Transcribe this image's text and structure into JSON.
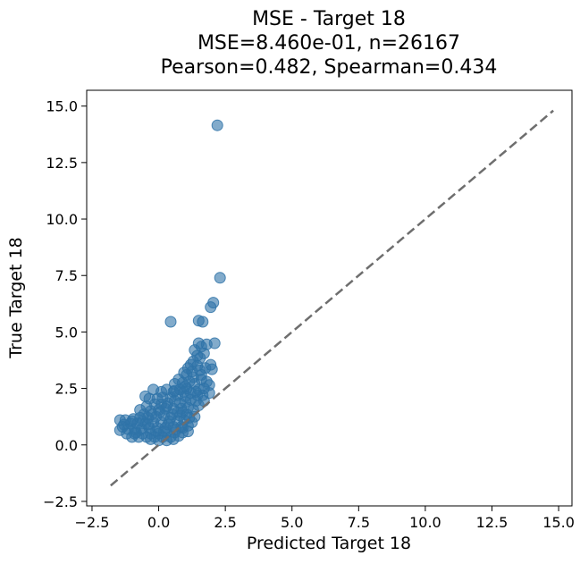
{
  "chart_data": {
    "type": "scatter",
    "title": [
      "MSE - Target 18",
      "MSE=8.460e-01, n=26167",
      "Pearson=0.482, Spearman=0.434"
    ],
    "xlabel": "Predicted Target 18",
    "ylabel": "True Target 18",
    "xlim": [
      -2.7,
      15.5
    ],
    "ylim": [
      -2.7,
      15.7
    ],
    "xticks": [
      -2.5,
      0.0,
      2.5,
      5.0,
      7.5,
      10.0,
      12.5,
      15.0
    ],
    "yticks": [
      -2.5,
      0.0,
      2.5,
      5.0,
      7.5,
      10.0,
      12.5,
      15.0
    ],
    "xtick_labels": [
      "−2.5",
      "0.0",
      "2.5",
      "5.0",
      "7.5",
      "10.0",
      "12.5",
      "15.0"
    ],
    "ytick_labels": [
      "−2.5",
      "0.0",
      "2.5",
      "5.0",
      "7.5",
      "10.0",
      "12.5",
      "15.0"
    ],
    "grid": false,
    "point_color": "#2f73a8",
    "reference_line": {
      "x": [
        -1.8,
        14.8
      ],
      "y": [
        -1.8,
        14.8
      ],
      "style": "dashed",
      "color": "#6e6e6e"
    },
    "points": [
      [
        2.2,
        14.15
      ],
      [
        2.3,
        7.4
      ],
      [
        2.05,
        6.3
      ],
      [
        1.95,
        6.1
      ],
      [
        1.5,
        5.5
      ],
      [
        1.65,
        5.45
      ],
      [
        0.45,
        5.45
      ],
      [
        2.1,
        4.5
      ],
      [
        1.8,
        4.45
      ],
      [
        1.5,
        4.5
      ],
      [
        1.35,
        4.2
      ],
      [
        1.6,
        4.35
      ],
      [
        1.7,
        4.05
      ],
      [
        1.55,
        3.85
      ],
      [
        1.45,
        3.95
      ],
      [
        1.3,
        3.7
      ],
      [
        1.95,
        3.55
      ],
      [
        1.75,
        3.4
      ],
      [
        2.0,
        3.35
      ],
      [
        1.55,
        3.3
      ],
      [
        1.45,
        3.5
      ],
      [
        1.2,
        3.55
      ],
      [
        1.1,
        3.4
      ],
      [
        1.25,
        3.25
      ],
      [
        1.05,
        3.1
      ],
      [
        0.95,
        3.2
      ],
      [
        1.3,
        3.0
      ],
      [
        1.6,
        2.9
      ],
      [
        1.8,
        2.8
      ],
      [
        1.9,
        2.65
      ],
      [
        1.7,
        2.5
      ],
      [
        1.5,
        2.45
      ],
      [
        1.35,
        2.7
      ],
      [
        1.15,
        2.8
      ],
      [
        1.0,
        2.6
      ],
      [
        0.9,
        2.75
      ],
      [
        0.75,
        2.9
      ],
      [
        0.6,
        2.7
      ],
      [
        0.8,
        2.45
      ],
      [
        0.55,
        2.35
      ],
      [
        0.3,
        2.45
      ],
      [
        0.1,
        2.35
      ],
      [
        -0.2,
        2.45
      ],
      [
        -0.5,
        2.15
      ],
      [
        -0.35,
        2.05
      ],
      [
        0.15,
        2.1
      ],
      [
        0.45,
        2.1
      ],
      [
        0.7,
        2.2
      ],
      [
        0.95,
        2.35
      ],
      [
        1.2,
        2.3
      ],
      [
        1.45,
        2.2
      ],
      [
        1.65,
        2.2
      ],
      [
        1.4,
        1.95
      ],
      [
        1.2,
        2.0
      ],
      [
        1.0,
        1.9
      ],
      [
        0.8,
        1.85
      ],
      [
        0.6,
        1.95
      ],
      [
        0.35,
        1.85
      ],
      [
        0.1,
        1.8
      ],
      [
        -0.15,
        1.8
      ],
      [
        -0.45,
        1.7
      ],
      [
        -0.7,
        1.55
      ],
      [
        -0.55,
        1.35
      ],
      [
        -0.3,
        1.5
      ],
      [
        0.0,
        1.55
      ],
      [
        0.25,
        1.6
      ],
      [
        0.55,
        1.6
      ],
      [
        0.85,
        1.6
      ],
      [
        1.1,
        1.65
      ],
      [
        1.3,
        1.55
      ],
      [
        1.05,
        1.35
      ],
      [
        0.8,
        1.3
      ],
      [
        0.5,
        1.35
      ],
      [
        0.2,
        1.3
      ],
      [
        -0.1,
        1.25
      ],
      [
        -0.4,
        1.2
      ],
      [
        -0.7,
        1.2
      ],
      [
        -0.95,
        1.15
      ],
      [
        -1.25,
        1.1
      ],
      [
        -1.45,
        1.1
      ],
      [
        -1.3,
        0.9
      ],
      [
        -1.05,
        0.95
      ],
      [
        -0.8,
        0.95
      ],
      [
        -0.5,
        0.95
      ],
      [
        -0.2,
        1.0
      ],
      [
        0.1,
        1.0
      ],
      [
        0.4,
        1.05
      ],
      [
        0.7,
        1.05
      ],
      [
        0.95,
        1.1
      ],
      [
        1.15,
        1.2
      ],
      [
        1.35,
        1.25
      ],
      [
        1.1,
        0.85
      ],
      [
        0.85,
        0.8
      ],
      [
        0.55,
        0.8
      ],
      [
        0.25,
        0.75
      ],
      [
        -0.05,
        0.75
      ],
      [
        -0.35,
        0.75
      ],
      [
        -0.65,
        0.7
      ],
      [
        -0.9,
        0.7
      ],
      [
        -1.15,
        0.7
      ],
      [
        -1.45,
        0.65
      ],
      [
        -1.2,
        0.5
      ],
      [
        -0.9,
        0.5
      ],
      [
        -0.6,
        0.5
      ],
      [
        -0.3,
        0.5
      ],
      [
        0.0,
        0.5
      ],
      [
        0.3,
        0.55
      ],
      [
        0.6,
        0.55
      ],
      [
        0.9,
        0.55
      ],
      [
        1.1,
        0.6
      ],
      [
        0.75,
        0.4
      ],
      [
        0.45,
        0.35
      ],
      [
        0.15,
        0.35
      ],
      [
        -0.15,
        0.35
      ],
      [
        -0.45,
        0.35
      ],
      [
        -0.75,
        0.35
      ],
      [
        -1.0,
        0.35
      ],
      [
        0.3,
        0.2
      ],
      [
        0.0,
        0.2
      ],
      [
        -0.3,
        0.25
      ],
      [
        0.55,
        0.25
      ],
      [
        0.9,
        0.75
      ],
      [
        1.5,
        1.75
      ],
      [
        1.7,
        1.95
      ],
      [
        1.9,
        2.3
      ],
      [
        0.7,
        1.45
      ],
      [
        0.35,
        0.9
      ],
      [
        -0.6,
        1.05
      ],
      [
        -0.85,
        0.55
      ],
      [
        -0.1,
        0.6
      ],
      [
        0.45,
        1.2
      ],
      [
        1.25,
        1.0
      ],
      [
        0.05,
        1.45
      ],
      [
        -0.25,
        1.35
      ],
      [
        0.6,
        2.4
      ],
      [
        1.05,
        2.5
      ],
      [
        1.4,
        2.35
      ],
      [
        1.6,
        3.1
      ],
      [
        1.0,
        2.15
      ],
      [
        0.3,
        1.7
      ],
      [
        -0.05,
        2.05
      ],
      [
        0.2,
        0.6
      ],
      [
        0.65,
        0.7
      ],
      [
        -1.35,
        0.8
      ],
      [
        -1.0,
        1.05
      ],
      [
        -0.4,
        0.9
      ],
      [
        0.9,
        1.45
      ]
    ]
  }
}
